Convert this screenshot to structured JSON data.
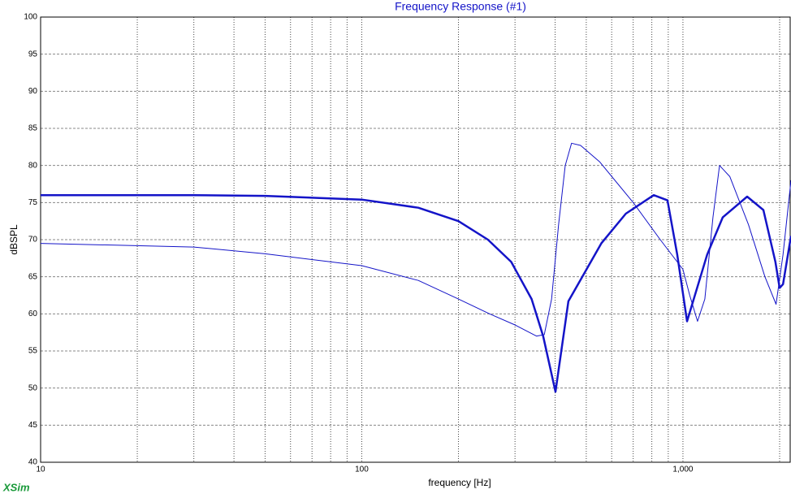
{
  "chart_data": {
    "type": "line",
    "title": "Frequency Response (#1)",
    "xlabel": "frequency [Hz]",
    "ylabel": "dBSPL",
    "footer": "XSim",
    "xscale": "log",
    "xlim": [
      10,
      2170
    ],
    "ylim": [
      40,
      100
    ],
    "xticks": [
      10,
      100,
      {
        "value": 1000,
        "label": "1,000"
      }
    ],
    "xminor_ticks": [
      20,
      30,
      40,
      50,
      60,
      70,
      80,
      90,
      200,
      300,
      400,
      500,
      600,
      700,
      800,
      900,
      2000
    ],
    "yticks": [
      40,
      45,
      50,
      55,
      60,
      65,
      70,
      75,
      80,
      85,
      90,
      95,
      100
    ],
    "grid": true,
    "series": [
      {
        "color": "#1414c8",
        "width": 2.5,
        "x": [
          10,
          30,
          50,
          100,
          150,
          200,
          247,
          292,
          338,
          367,
          401,
          440,
          557,
          664,
          811,
          895,
          960,
          1030,
          1190,
          1330,
          1585,
          1780,
          1940,
          2000,
          2050,
          2170
        ],
        "values": [
          76,
          76,
          75.9,
          75.4,
          74.3,
          72.5,
          70,
          67,
          62,
          57,
          49.5,
          61.7,
          69.5,
          73.5,
          76,
          75.3,
          68,
          59,
          68,
          73,
          75.8,
          74,
          67,
          63.5,
          64,
          70.5
        ]
      },
      {
        "color": "#1414c8",
        "width": 1,
        "x": [
          10,
          30,
          50,
          100,
          150,
          200,
          250,
          300,
          350,
          370,
          390,
          410,
          430,
          450,
          480,
          550,
          700,
          850,
          1000,
          1050,
          1110,
          1170,
          1240,
          1300,
          1400,
          1600,
          1800,
          1950,
          2050,
          2170
        ],
        "values": [
          69.5,
          69,
          68.1,
          66.5,
          64.5,
          62,
          60,
          58.5,
          57,
          57.2,
          62,
          72,
          80,
          83,
          82.7,
          80.5,
          75,
          70,
          66,
          62.5,
          59,
          62,
          73,
          80,
          78.5,
          72,
          65,
          61.3,
          68,
          78
        ]
      }
    ]
  }
}
